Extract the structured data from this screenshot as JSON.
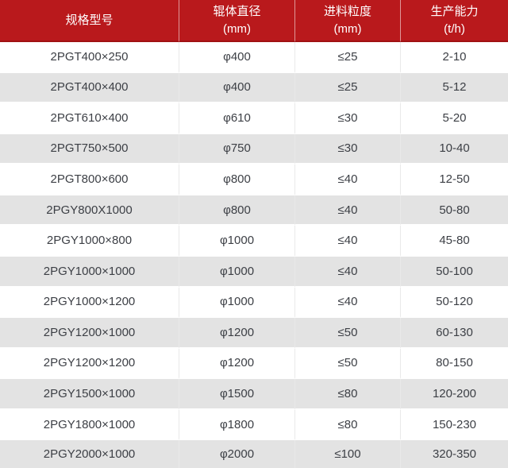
{
  "colors": {
    "header_bg": "#b9191c",
    "header_text": "#ffffff",
    "header_divider": "#e7b9ba",
    "row_alt_bg": "#e3e3e3",
    "row_bg": "#ffffff",
    "body_text": "#3c3f45",
    "cell_divider": "#e9e9e9"
  },
  "table": {
    "headers": [
      {
        "line1": "规格型号"
      },
      {
        "line1": "辊体直径",
        "line2": "(mm)"
      },
      {
        "line1": "进料粒度",
        "line2": "(mm)"
      },
      {
        "line1": "生产能力",
        "line2": "(t/h)"
      }
    ]
  },
  "chart_data": {
    "type": "table",
    "title": "",
    "columns": [
      "规格型号",
      "辊体直径 (mm)",
      "进料粒度 (mm)",
      "生产能力 (t/h)"
    ],
    "rows": [
      [
        "2PGT400×250",
        "φ400",
        "≤25",
        "2-10"
      ],
      [
        "2PGT400×400",
        "φ400",
        "≤25",
        "5-12"
      ],
      [
        "2PGT610×400",
        "φ610",
        "≤30",
        "5-20"
      ],
      [
        "2PGT750×500",
        "φ750",
        "≤30",
        "10-40"
      ],
      [
        "2PGT800×600",
        "φ800",
        "≤40",
        "12-50"
      ],
      [
        "2PGY800X1000",
        "φ800",
        "≤40",
        "50-80"
      ],
      [
        "2PGY1000×800",
        "φ1000",
        "≤40",
        "45-80"
      ],
      [
        "2PGY1000×1000",
        "φ1000",
        "≤40",
        "50-100"
      ],
      [
        "2PGY1000×1200",
        "φ1000",
        "≤40",
        "50-120"
      ],
      [
        "2PGY1200×1000",
        "φ1200",
        "≤50",
        "60-130"
      ],
      [
        "2PGY1200×1200",
        "φ1200",
        "≤50",
        "80-150"
      ],
      [
        "2PGY1500×1000",
        "φ1500",
        "≤80",
        "120-200"
      ],
      [
        "2PGY1800×1000",
        "φ1800",
        "≤80",
        "150-230"
      ],
      [
        "2PGY2000×1000",
        "φ2000",
        "≤100",
        "320-350"
      ]
    ],
    "layout": {
      "header_rows": 1,
      "zebra_striping": true,
      "alignment": "center"
    }
  }
}
